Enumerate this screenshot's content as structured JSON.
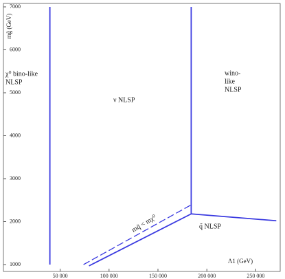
{
  "chart_data": {
    "type": "line",
    "xlabel": "Λ1 (GeV)",
    "ylabel": "mg̃ (GeV)",
    "xlim": [
      -8000,
      275000
    ],
    "ylim": [
      840,
      7080
    ],
    "xticks": [
      {
        "value": 50000,
        "label": "50 000"
      },
      {
        "value": 100000,
        "label": "100 000"
      },
      {
        "value": 150000,
        "label": "150 000"
      },
      {
        "value": 200000,
        "label": "200 000"
      },
      {
        "value": 250000,
        "label": "250 000"
      }
    ],
    "yticks": [
      1000,
      2000,
      3000,
      4000,
      5000,
      6000,
      7000
    ],
    "color": "#3a3ae0",
    "series": [
      {
        "x": [
          39500,
          39500
        ],
        "values": [
          1000,
          7000
        ]
      },
      {
        "x": [
          184000,
          184000
        ],
        "values": [
          2180,
          7000
        ]
      },
      {
        "x": [
          79500,
          184000
        ],
        "values": [
          970,
          2180
        ]
      },
      {
        "x": [
          73900,
          184000
        ],
        "values": [
          1000,
          2390
        ],
        "dashed": true
      },
      {
        "x": [
          184000,
          271000
        ],
        "values": [
          2180,
          2020
        ]
      }
    ],
    "annotations": [
      [
        "χ⁰ bino-like",
        "NLSP"
      ],
      [
        "ν NLSP"
      ],
      [
        "wino-",
        "like",
        "NLSP"
      ],
      [
        "q̃ NLSP"
      ],
      [
        "mq̃ < mχ⁰"
      ]
    ]
  }
}
